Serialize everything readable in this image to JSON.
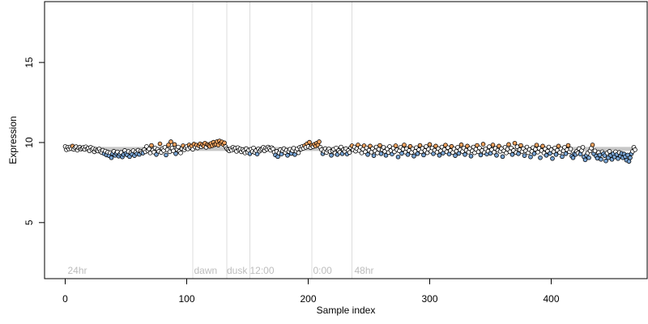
{
  "chart_data": {
    "type": "scatter",
    "xlabel": "Sample index",
    "ylabel": "Expression",
    "xlim": [
      -17,
      479
    ],
    "ylim": [
      1.5,
      18.8
    ],
    "x_ticks": [
      0,
      100,
      200,
      300,
      400
    ],
    "y_ticks": [
      5,
      10,
      15
    ],
    "phase_lines": [
      105,
      133,
      152,
      203,
      236
    ],
    "phase_labels": [
      {
        "text": "24hr",
        "x": 2
      },
      {
        "text": "dawn",
        "x": 106
      },
      {
        "text": "dusk",
        "x": 133
      },
      {
        "text": "12:00",
        "x": 152
      },
      {
        "text": "0:00",
        "x": 204
      },
      {
        "text": "48hr",
        "x": 238
      }
    ],
    "baseline": 9.6,
    "colors": {
      "high": "#f4a460",
      "low": "#7aa6d6",
      "neutral": "#ffffff",
      "baseline": "#c7c7c7",
      "phase_line": "#dcdcdc",
      "point_edge": "#000000"
    },
    "y": [
      9.75,
      9.55,
      9.7,
      9.6,
      9.72,
      9.62,
      9.78,
      9.58,
      9.68,
      9.74,
      9.52,
      9.66,
      9.71,
      9.59,
      9.64,
      9.69,
      9.57,
      9.73,
      9.61,
      9.65,
      9.48,
      9.7,
      9.56,
      9.63,
      9.42,
      9.58,
      9.51,
      9.47,
      9.6,
      9.44,
      9.38,
      9.52,
      9.31,
      9.46,
      9.22,
      9.4,
      9.18,
      9.36,
      9.05,
      9.3,
      9.45,
      9.2,
      9.33,
      9.41,
      9.15,
      9.28,
      9.38,
      9.1,
      9.25,
      9.5,
      9.32,
      9.22,
      9.44,
      9.12,
      9.35,
      9.27,
      9.49,
      9.18,
      9.4,
      9.3,
      9.52,
      9.26,
      9.46,
      9.38,
      9.34,
      9.55,
      9.42,
      9.75,
      9.48,
      9.6,
      9.35,
      9.82,
      9.52,
      9.4,
      9.66,
      9.25,
      9.58,
      9.45,
      9.92,
      9.38,
      9.62,
      9.5,
      9.7,
      9.22,
      9.55,
      9.85,
      9.42,
      10.05,
      9.65,
      9.48,
      9.88,
      9.3,
      9.58,
      9.72,
      9.45,
      9.35,
      9.62,
      9.8,
      9.55,
      9.68,
      9.75,
      9.6,
      9.85,
      9.7,
      9.78,
      9.58,
      9.9,
      9.72,
      9.84,
      9.66,
      9.8,
      9.92,
      9.74,
      9.86,
      9.78,
      9.96,
      9.7,
      9.88,
      9.82,
      9.76,
      9.94,
      9.8,
      10.02,
      9.86,
      9.9,
      10.06,
      9.84,
      10.1,
      9.96,
      10.04,
      9.88,
      9.98,
      9.74,
      9.62,
      9.55,
      9.48,
      9.6,
      9.52,
      9.7,
      9.58,
      9.65,
      9.45,
      9.68,
      9.54,
      9.6,
      9.42,
      9.56,
      9.48,
      9.35,
      9.62,
      9.4,
      9.52,
      9.3,
      9.58,
      9.44,
      9.66,
      9.38,
      9.5,
      9.28,
      9.6,
      9.46,
      9.55,
      9.62,
      9.7,
      9.48,
      9.66,
      9.58,
      9.72,
      9.64,
      9.52,
      9.68,
      9.6,
      9.4,
      9.22,
      9.45,
      9.12,
      9.35,
      9.55,
      9.28,
      9.48,
      9.62,
      9.38,
      9.52,
      9.2,
      9.44,
      9.58,
      9.32,
      9.5,
      9.65,
      9.25,
      9.46,
      9.6,
      9.36,
      9.7,
      9.58,
      9.75,
      9.64,
      9.8,
      9.7,
      9.92,
      9.75,
      10.02,
      9.68,
      9.82,
      9.74,
      9.88,
      9.78,
      9.96,
      9.84,
      10.05,
      9.7,
      9.55,
      9.3,
      9.45,
      9.62,
      9.38,
      9.52,
      9.6,
      9.44,
      9.2,
      9.48,
      9.58,
      9.35,
      9.66,
      9.25,
      9.5,
      9.4,
      9.72,
      9.3,
      9.55,
      9.45,
      9.62,
      9.28,
      9.5,
      9.38,
      9.68,
      9.8,
      9.55,
      9.72,
      9.46,
      9.62,
      9.85,
      9.5,
      9.7,
      9.35,
      9.58,
      9.8,
      9.42,
      9.66,
      9.25,
      9.52,
      9.78,
      9.4,
      9.62,
      9.18,
      9.48,
      9.72,
      9.35,
      9.58,
      9.82,
      9.3,
      9.55,
      9.7,
      9.45,
      9.2,
      9.6,
      9.38,
      9.75,
      9.5,
      9.28,
      9.65,
      9.42,
      9.8,
      9.55,
      9.1,
      9.48,
      9.7,
      9.32,
      9.58,
      9.85,
      9.4,
      9.62,
      9.25,
      9.5,
      9.76,
      9.38,
      9.6,
      9.15,
      9.45,
      9.68,
      9.3,
      9.55,
      9.82,
      9.42,
      9.64,
      9.22,
      9.5,
      9.75,
      9.36,
      9.58,
      9.88,
      9.45,
      9.66,
      9.3,
      9.52,
      9.78,
      9.4,
      9.62,
      9.2,
      9.48,
      9.72,
      9.34,
      9.56,
      9.84,
      9.42,
      9.68,
      9.28,
      9.5,
      9.76,
      9.38,
      9.6,
      9.18,
      9.46,
      9.7,
      9.32,
      9.55,
      9.86,
      9.44,
      9.65,
      9.25,
      9.52,
      9.78,
      9.4,
      9.62,
      9.15,
      9.48,
      9.72,
      9.36,
      9.58,
      9.82,
      9.42,
      9.66,
      9.22,
      9.5,
      9.9,
      9.38,
      9.6,
      9.28,
      9.46,
      9.74,
      9.33,
      9.55,
      9.85,
      9.4,
      9.64,
      9.2,
      9.52,
      9.78,
      9.45,
      9.62,
      9.12,
      9.48,
      9.7,
      9.35,
      9.58,
      9.88,
      9.42,
      9.66,
      9.25,
      9.5,
      9.96,
      9.38,
      9.74,
      9.3,
      9.55,
      9.82,
      9.44,
      9.62,
      9.18,
      9.48,
      9.72,
      9.36,
      9.56,
      9.1,
      9.45,
      9.68,
      9.3,
      9.58,
      9.84,
      9.4,
      9.64,
      9.05,
      9.5,
      9.78,
      9.35,
      9.6,
      9.2,
      9.46,
      9.72,
      9.32,
      9.55,
      9.0,
      9.42,
      9.66,
      9.25,
      9.52,
      9.78,
      9.38,
      9.6,
      9.12,
      9.48,
      9.7,
      9.3,
      9.55,
      9.82,
      9.42,
      9.6,
      9.15,
      9.05,
      9.3,
      9.25,
      9.45,
      9.35,
      9.62,
      9.28,
      9.5,
      9.7,
      9.1,
      8.92,
      9.2,
      9.35,
      9.05,
      9.48,
      9.65,
      9.85,
      9.3,
      9.48,
      9.15,
      9.02,
      9.38,
      9.22,
      8.95,
      9.42,
      9.3,
      9.18,
      8.85,
      9.35,
      9.05,
      9.45,
      9.2,
      8.95,
      9.3,
      9.1,
      9.42,
      9.25,
      9.0,
      9.38,
      9.15,
      9.32,
      9.05,
      9.28,
      9.12,
      8.9,
      9.22,
      8.82,
      9.05,
      9.3,
      9.45,
      9.7,
      9.55
    ]
  }
}
